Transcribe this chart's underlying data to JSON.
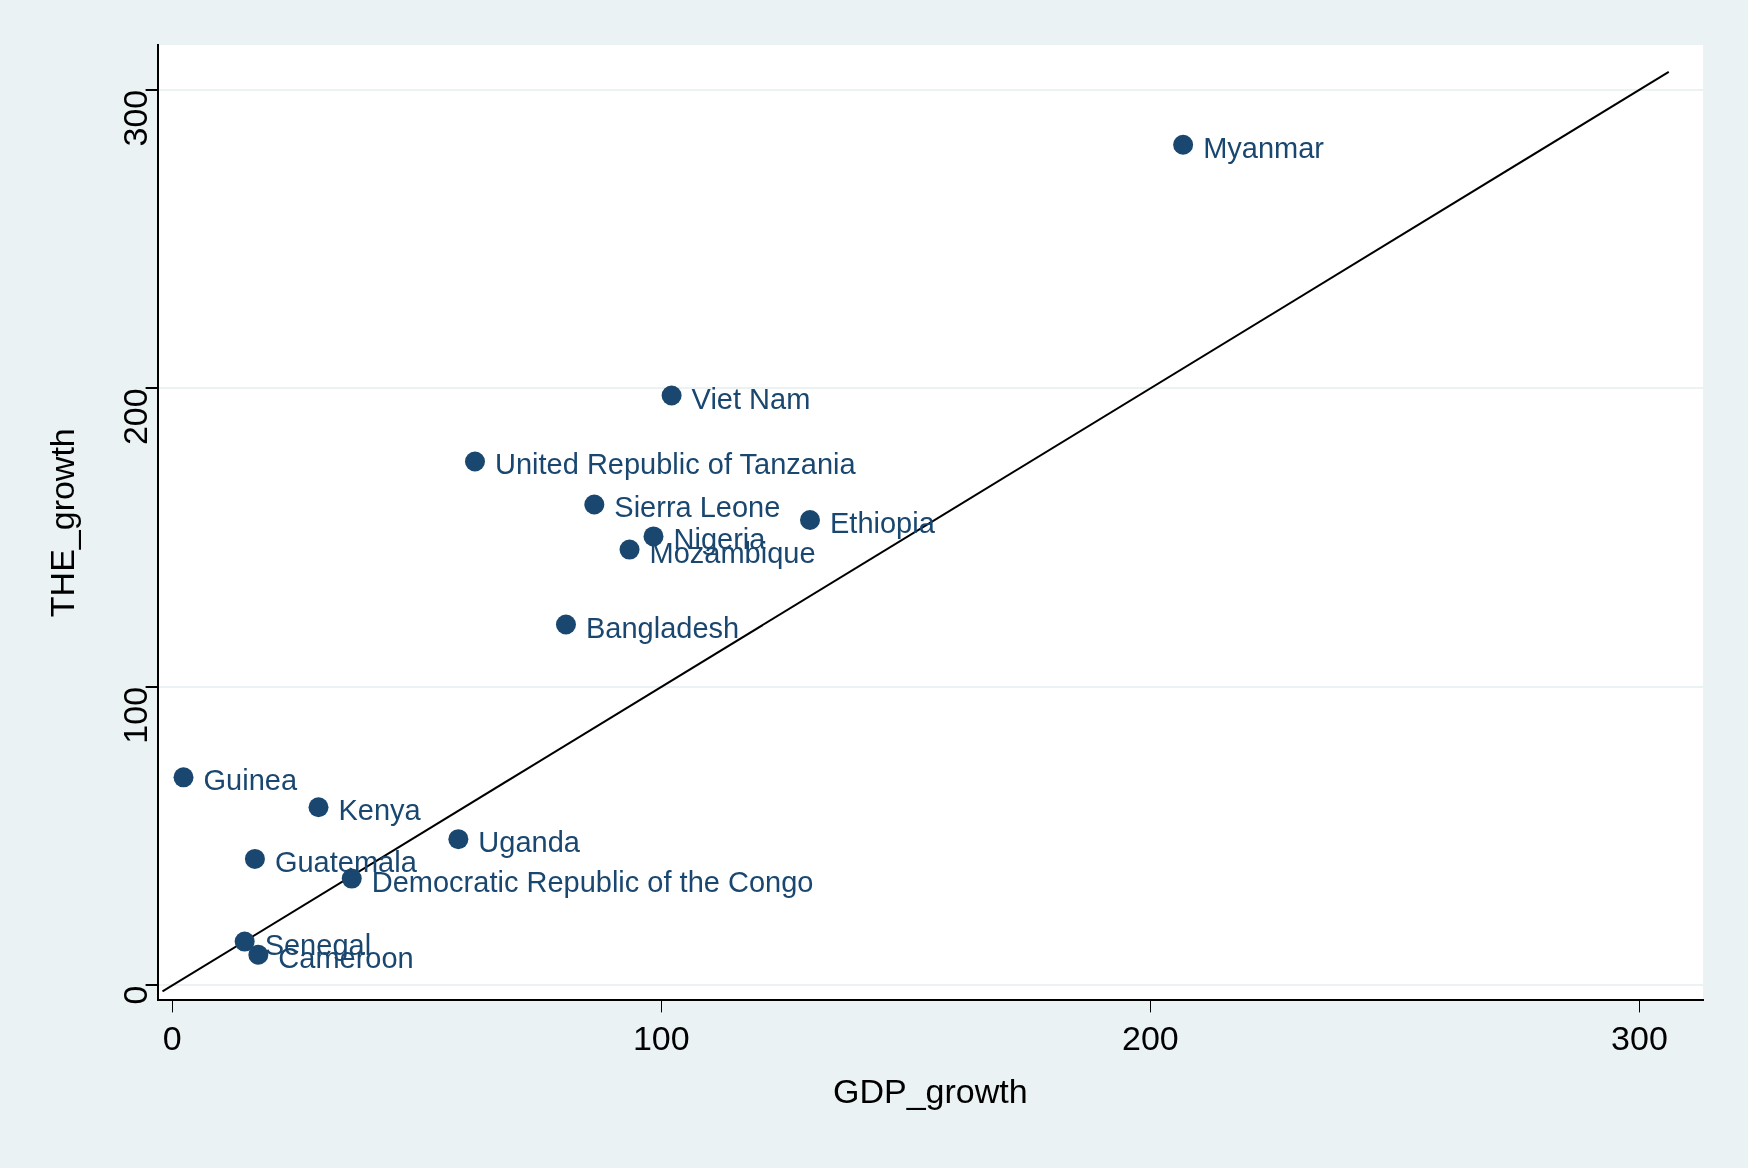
{
  "chart_data": {
    "type": "scatter",
    "xlabel": "GDP_growth",
    "ylabel": "THE_growth",
    "xlim": [
      -3,
      313
    ],
    "ylim": [
      -5,
      315
    ],
    "xticks": [
      0,
      100,
      200,
      300
    ],
    "yticks": [
      0,
      100,
      200,
      300
    ],
    "grid": "y",
    "legend": false,
    "marker": "circle",
    "series": [
      {
        "color": "#1a476f",
        "x": [
          206.7,
          102.1,
          61.9,
          86.3,
          130.4,
          98.4,
          93.5,
          80.5,
          2.3,
          29.9,
          58.5,
          16.9,
          36.7,
          14.8,
          17.6
        ],
        "values": [
          281.6,
          197.6,
          175.5,
          161.1,
          155.9,
          150.4,
          146,
          120.9,
          69.7,
          59.7,
          49,
          42.4,
          35.8,
          14.7,
          10.3
        ]
      },
      {
        "type": "line",
        "color": "#000000",
        "marker": "none",
        "x": [
          -2,
          306
        ],
        "values": [
          -2,
          306
        ]
      }
    ],
    "annotations": [
      {
        "text": "Myanmar",
        "x": 206.7,
        "y": 281.6
      },
      {
        "text": "Viet Nam",
        "x": 102.1,
        "y": 197.6
      },
      {
        "text": "United Republic of Tanzania",
        "x": 61.9,
        "y": 175.5
      },
      {
        "text": "Sierra Leone",
        "x": 86.3,
        "y": 161.1
      },
      {
        "text": "Ethiopia",
        "x": 130.4,
        "y": 155.9
      },
      {
        "text": "Nigeria",
        "x": 98.4,
        "y": 150.4
      },
      {
        "text": "Mozambique",
        "x": 93.5,
        "y": 146
      },
      {
        "text": "Bangladesh",
        "x": 80.5,
        "y": 120.9
      },
      {
        "text": "Guinea",
        "x": 2.3,
        "y": 69.7
      },
      {
        "text": "Kenya",
        "x": 29.9,
        "y": 59.7
      },
      {
        "text": "Uganda",
        "x": 58.5,
        "y": 49
      },
      {
        "text": "Guatemala",
        "x": 16.9,
        "y": 42.4
      },
      {
        "text": "Democratic Republic of the Congo",
        "x": 36.7,
        "y": 35.8
      },
      {
        "text": "Senegal",
        "x": 14.8,
        "y": 14.7
      },
      {
        "text": "Cameroon",
        "x": 17.6,
        "y": 10.3
      }
    ]
  }
}
